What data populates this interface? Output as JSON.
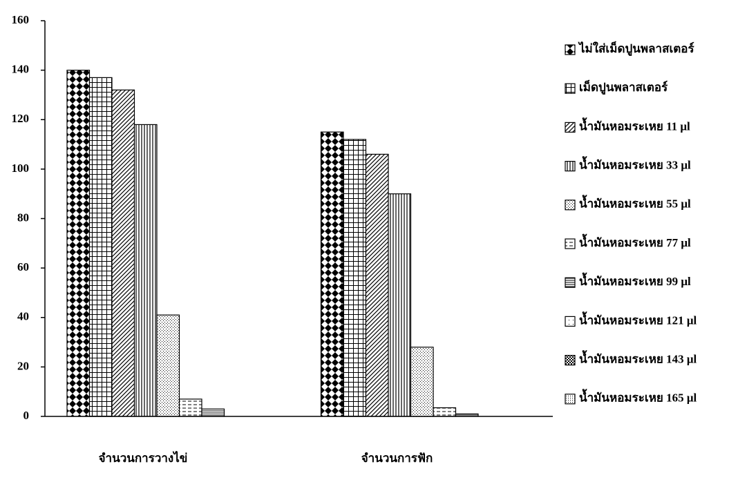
{
  "chart_data": {
    "type": "bar",
    "categories": [
      "จำนวนการวางไข่",
      "จำนวนการฟัก"
    ],
    "series": [
      {
        "name": "ไม่ใส่เม็ดปูนพลาสเตอร์",
        "color": "#000000",
        "pattern": "checker",
        "values": [
          140,
          115
        ]
      },
      {
        "name": "เม็ดปูนพลาสเตอร์",
        "color": "#000000",
        "pattern": "grid",
        "values": [
          137,
          112
        ]
      },
      {
        "name": "น้ำมันหอมระเหย 11 μl",
        "color": "#000000",
        "pattern": "diagonal",
        "values": [
          132,
          106
        ]
      },
      {
        "name": "น้ำมันหอมระเหย 33 μl",
        "color": "#000000",
        "pattern": "vertical",
        "values": [
          118,
          90
        ]
      },
      {
        "name": "น้ำมันหอมระเหย 55 μl",
        "color": "#000000",
        "pattern": "dots",
        "values": [
          41,
          28
        ]
      },
      {
        "name": "น้ำมันหอมระเหย 77 μl",
        "color": "#000000",
        "pattern": "dashes",
        "values": [
          7,
          3.5
        ]
      },
      {
        "name": "น้ำมันหอมระเหย 99 μl",
        "color": "#000000",
        "pattern": "horizontal",
        "values": [
          3,
          1
        ]
      },
      {
        "name": "น้ำมันหอมระเหย 121 μl",
        "color": "#000000",
        "pattern": "sparse",
        "values": [
          0,
          0
        ]
      },
      {
        "name": "น้ำมันหอมระเหย 143 μl",
        "color": "#000000",
        "pattern": "smallchecker",
        "values": [
          0,
          0
        ]
      },
      {
        "name": "น้ำมันหอมระเหย 165 μl",
        "color": "#000000",
        "pattern": "densedots",
        "values": [
          0,
          0
        ]
      }
    ],
    "ylim": [
      0,
      160
    ],
    "yticks": [
      0,
      20,
      40,
      60,
      80,
      100,
      120,
      140,
      160
    ],
    "grid": false,
    "legend": "right"
  }
}
